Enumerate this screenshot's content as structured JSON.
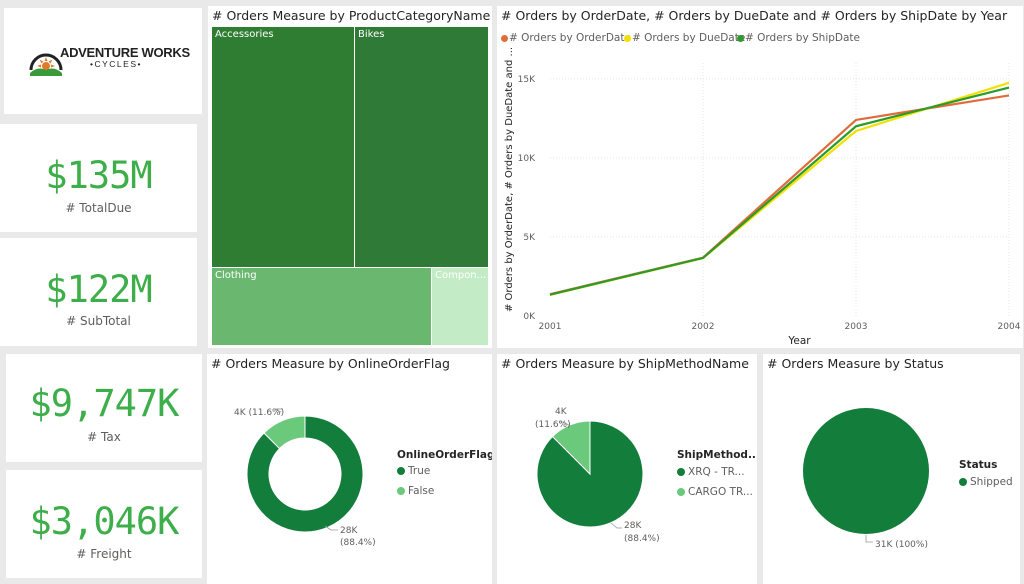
{
  "logo": {
    "line1": "ADVENTURE WORKS",
    "line2": "•CYCLES•"
  },
  "kpis": [
    {
      "value": "$135M",
      "label": "# TotalDue"
    },
    {
      "value": "$122M",
      "label": "# SubTotal"
    },
    {
      "value": "$9,747K",
      "label": "# Tax"
    },
    {
      "value": "$3,046K",
      "label": "# Freight"
    }
  ],
  "treemap": {
    "title": "# Orders Measure by ProductCategoryName",
    "cells": [
      {
        "label": "Accessories",
        "color": "#2e7d32"
      },
      {
        "label": "Bikes",
        "color": "#2f7a36"
      },
      {
        "label": "Clothing",
        "color": "#6ab870"
      },
      {
        "label": "Compon...",
        "color": "#c3ebc5"
      }
    ]
  },
  "line_chart": {
    "title": "# Orders by OrderDate, # Orders by DueDate and # Orders by ShipDate by Year",
    "legend": [
      {
        "name": "# Orders by OrderDate",
        "color": "#e06c3c"
      },
      {
        "name": "# Orders by DueDate",
        "color": "#f2e000"
      },
      {
        "name": "# Orders by ShipDate",
        "color": "#2c9a2c"
      }
    ],
    "ylabel": "# Orders by OrderDate, # Orders by DueDate and ...",
    "xlabel": "Year"
  },
  "chart_data": [
    {
      "type": "line",
      "title": "# Orders by OrderDate, # Orders by DueDate and # Orders by ShipDate by Year",
      "x": [
        "2001",
        "2002",
        "2003",
        "2004"
      ],
      "series": [
        {
          "name": "# Orders by OrderDate",
          "values": [
            1380,
            3690,
            12400,
            13950
          ]
        },
        {
          "name": "# Orders by DueDate",
          "values": [
            1330,
            3660,
            11700,
            14750
          ]
        },
        {
          "name": "# Orders by ShipDate",
          "values": [
            1350,
            3670,
            12000,
            14450
          ]
        }
      ],
      "xlabel": "Year",
      "ylabel": "# Orders by OrderDate, # Orders by DueDate and ...",
      "ylim": [
        0,
        16000
      ],
      "yticks": [
        "0K",
        "5K",
        "10K",
        "15K"
      ],
      "grid": true,
      "legend": "top-left"
    },
    {
      "type": "pie",
      "title": "# Orders Measure by OnlineOrderFlag",
      "donut": true,
      "categories": [
        "True",
        "False"
      ],
      "values": [
        28000,
        4000
      ],
      "labels": [
        [
          "28K",
          "(88.4%)"
        ],
        [
          "4K (11.6%)"
        ]
      ],
      "percents": [
        88.4,
        11.6
      ],
      "legend": "right"
    },
    {
      "type": "pie",
      "title": "# Orders Measure by ShipMethodName",
      "categories": [
        "XRQ - TR...",
        "CARGO TR..."
      ],
      "values": [
        28000,
        4000
      ],
      "labels": [
        [
          "28K",
          "(88.4%)"
        ],
        [
          "4K",
          "(11.6%)"
        ]
      ],
      "percents": [
        88.4,
        11.6
      ],
      "legend": "right"
    },
    {
      "type": "pie",
      "title": "# Orders Measure by Status",
      "categories": [
        "Shipped"
      ],
      "values": [
        31000
      ],
      "labels": [
        [
          "31K (100%)"
        ]
      ],
      "percents": [
        100
      ],
      "legend": "right"
    }
  ],
  "donut": {
    "title": "# Orders Measure by OnlineOrderFlag",
    "legend_title": "OnlineOrderFlag",
    "items": [
      {
        "name": "True",
        "color": "#137d3c"
      },
      {
        "name": "False",
        "color": "#6bc97b"
      }
    ]
  },
  "pie_ship": {
    "title": "# Orders Measure by ShipMethodName",
    "legend_title": "ShipMethod...",
    "items": [
      {
        "name": "XRQ - TR...",
        "color": "#137d3c"
      },
      {
        "name": "CARGO TR...",
        "color": "#6bc97b"
      }
    ]
  },
  "pie_status": {
    "title": "# Orders Measure by Status",
    "legend_title": "Status",
    "items": [
      {
        "name": "Shipped",
        "color": "#137d3c"
      }
    ]
  }
}
